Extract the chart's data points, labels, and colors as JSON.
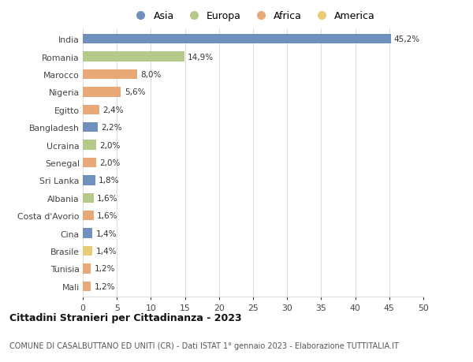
{
  "countries": [
    "India",
    "Romania",
    "Marocco",
    "Nigeria",
    "Egitto",
    "Bangladesh",
    "Ucraina",
    "Senegal",
    "Sri Lanka",
    "Albania",
    "Costa d'Avorio",
    "Cina",
    "Brasile",
    "Tunisia",
    "Mali"
  ],
  "values": [
    45.2,
    14.9,
    8.0,
    5.6,
    2.4,
    2.2,
    2.0,
    2.0,
    1.8,
    1.6,
    1.6,
    1.4,
    1.4,
    1.2,
    1.2
  ],
  "labels": [
    "45,2%",
    "14,9%",
    "8,0%",
    "5,6%",
    "2,4%",
    "2,2%",
    "2,0%",
    "2,0%",
    "1,8%",
    "1,6%",
    "1,6%",
    "1,4%",
    "1,4%",
    "1,2%",
    "1,2%"
  ],
  "colors": [
    "#7090be",
    "#b5c98a",
    "#e8a878",
    "#e8a878",
    "#e8a878",
    "#7090be",
    "#b5c98a",
    "#e8a878",
    "#7090be",
    "#b5c98a",
    "#e8a878",
    "#7090be",
    "#e8cc78",
    "#e8a878",
    "#e8a878"
  ],
  "legend_labels": [
    "Asia",
    "Europa",
    "Africa",
    "America"
  ],
  "legend_colors": [
    "#7090be",
    "#b5c98a",
    "#e8a878",
    "#e8cc78"
  ],
  "title": "Cittadini Stranieri per Cittadinanza - 2023",
  "subtitle": "COMUNE DI CASALBUTTANO ED UNITI (CR) - Dati ISTAT 1° gennaio 2023 - Elaborazione TUTTITALIA.IT",
  "xlim": [
    0,
    50
  ],
  "xticks": [
    0,
    5,
    10,
    15,
    20,
    25,
    30,
    35,
    40,
    45,
    50
  ],
  "bg_color": "#ffffff",
  "grid_color": "#dddddd"
}
